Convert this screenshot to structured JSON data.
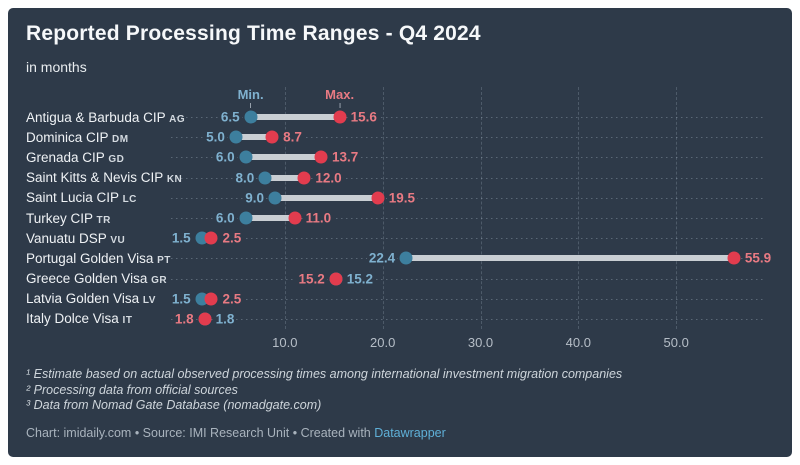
{
  "header": {
    "title": "Reported Processing Time Ranges - Q4 2024",
    "subtitle": "in months"
  },
  "legend": {
    "min_label": "Min.",
    "max_label": "Max."
  },
  "chart_data": {
    "type": "dumbbell-range",
    "title": "Reported Processing Time Ranges - Q4 2024",
    "subtitle": "in months",
    "unit": "months",
    "legend_position": "above-first-row",
    "x_axis": {
      "min": 0,
      "max": 60,
      "ticks": [
        10,
        20,
        30,
        40,
        50
      ],
      "tick_labels": [
        "10.0",
        "20.0",
        "30.0",
        "40.0",
        "50.0"
      ],
      "grid": "dashed-vertical"
    },
    "rows": [
      {
        "label": "Antigua & Barbuda CIP",
        "code": "AG",
        "min": 6.5,
        "max": 15.6
      },
      {
        "label": "Dominica CIP",
        "code": "DM",
        "min": 5.0,
        "max": 8.7
      },
      {
        "label": "Grenada CIP",
        "code": "GD",
        "min": 6.0,
        "max": 13.7
      },
      {
        "label": "Saint Kitts & Nevis CIP",
        "code": "KN",
        "min": 8.0,
        "max": 12.0
      },
      {
        "label": "Saint Lucia CIP",
        "code": "LC",
        "min": 9.0,
        "max": 19.5
      },
      {
        "label": "Turkey CIP",
        "code": "TR",
        "min": 6.0,
        "max": 11.0
      },
      {
        "label": "Vanuatu DSP",
        "code": "VU",
        "min": 1.5,
        "max": 2.5
      },
      {
        "label": "Portugal Golden Visa",
        "code": "PT",
        "min": 22.4,
        "max": 55.9
      },
      {
        "label": "Greece Golden Visa",
        "code": "GR",
        "min": 15.2,
        "max": 15.2,
        "labels_swapped": true
      },
      {
        "label": "Latvia Golden Visa",
        "code": "LV",
        "min": 1.5,
        "max": 2.5
      },
      {
        "label": "Italy Dolce Visa",
        "code": "IT",
        "min": 1.8,
        "max": 1.8,
        "labels_swapped": true
      }
    ]
  },
  "footer": {
    "notes": [
      "¹ Estimate based on actual observed processing times among international investment migration companies",
      "² Processing data from official sources",
      "³ Data from Nomad Gate Database (nomadgate.com)"
    ],
    "byline_prefix": "Chart: imidaily.com • Source: IMI Research Unit • Created with ",
    "byline_link": "Datawrapper"
  },
  "colors": {
    "background": "#2e3a49",
    "min": "#3d7f9e",
    "max": "#e23c4e",
    "min_text": "#7fb1cf",
    "max_text": "#e87a83",
    "bar": "#c9ced3",
    "link": "#5fb0d8"
  }
}
